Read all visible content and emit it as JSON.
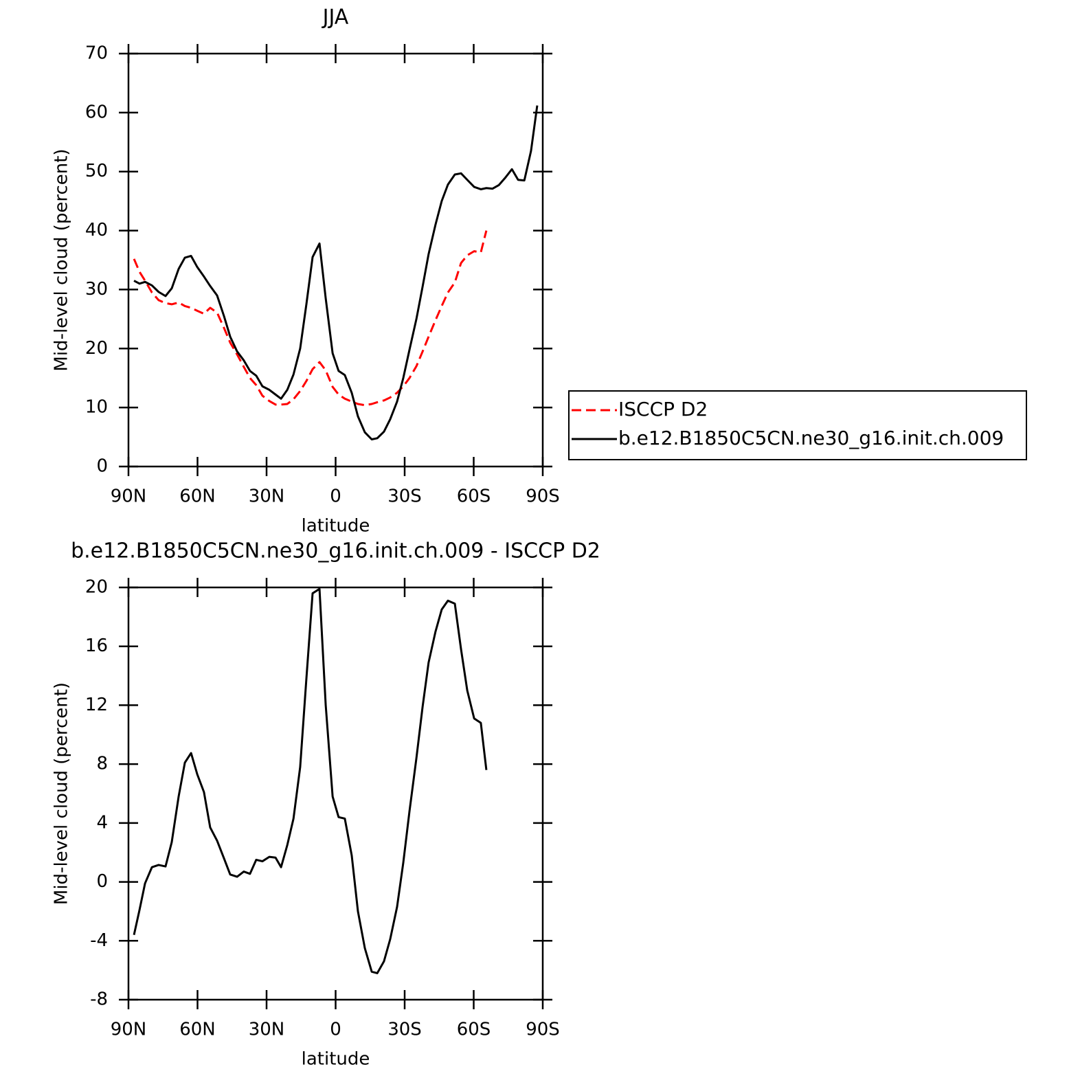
{
  "chart_data": [
    {
      "type": "line",
      "title": "JJA",
      "x_label": "latitude",
      "y_label": "Mid-level cloud (percent)",
      "x": [
        87.6,
        85.2,
        82.8,
        79.8,
        76.9,
        73.9,
        71.2,
        68.2,
        65.5,
        62.8,
        60.1,
        57.2,
        54.5,
        51.5,
        48.5,
        45.8,
        42.8,
        39.9,
        37.2,
        34.5,
        31.8,
        28.8,
        26.1,
        23.7,
        21,
        18.3,
        15.4,
        12.7,
        10,
        7,
        4.3,
        1.3,
        -1.3,
        -4,
        -7,
        -9.7,
        -12.7,
        -15.7,
        -18.1,
        -21,
        -23.7,
        -26.7,
        -29.4,
        -32.1,
        -35.1,
        -37.8,
        -40.4,
        -43.4,
        -46.1,
        -48.8,
        -51.8,
        -54.5,
        -57.2,
        -60.2,
        -63.1,
        -65.5,
        -68.2,
        -70.9,
        -73.6,
        -76.6,
        -79.3,
        -82,
        -84.9,
        -87.6
      ],
      "series": [
        {
          "name": "ISCCP D2",
          "color": "#ff0000",
          "style": "dashed",
          "values": [
            35.2,
            33,
            31.5,
            29.5,
            28.2,
            27.7,
            27.5,
            27.8,
            27.2,
            26.9,
            26.4,
            25.9,
            26.9,
            26.1,
            23.5,
            21,
            19,
            16.9,
            15,
            13.8,
            12,
            11.1,
            10.5,
            10.5,
            10.6,
            11.4,
            12.8,
            14.5,
            16.5,
            17.7,
            16.3,
            13.5,
            12.2,
            11.5,
            11,
            10.6,
            10.4,
            10.6,
            10.9,
            11.2,
            11.7,
            12.5,
            13.6,
            15,
            17,
            19.5,
            22,
            24.8,
            27.2,
            29.5,
            31.2,
            34.5,
            35.8,
            36.5,
            36.3,
            40,
            null,
            null,
            null,
            null,
            null,
            null,
            null,
            null
          ]
        },
        {
          "name": "b.e12.B1850C5CN.ne30_g16.init.ch.009",
          "color": "#000000",
          "style": "solid",
          "values": [
            31.5,
            31,
            31.3,
            30.7,
            29.6,
            28.9,
            30.2,
            33.5,
            35.4,
            35.7,
            33.8,
            32.2,
            30.6,
            29,
            25.5,
            22,
            19.5,
            18,
            16.2,
            15.4,
            13.6,
            13,
            12.2,
            11.5,
            13,
            15.6,
            20,
            27.5,
            35.5,
            37.8,
            28.5,
            19.2,
            16.2,
            15.5,
            12.5,
            8.5,
            5.8,
            4.6,
            4.8,
            5.9,
            8,
            11,
            15,
            19.8,
            25,
            30.5,
            36,
            41,
            45,
            47.8,
            49.5,
            49.7,
            48.6,
            47.4,
            47,
            47.2,
            47.1,
            47.7,
            48.9,
            50.4,
            48.6,
            48.5,
            53.5,
            61.2
          ]
        }
      ],
      "xlim": [
        90,
        -90
      ],
      "xticks": [
        {
          "value": 90,
          "label": "90N"
        },
        {
          "value": 60,
          "label": "60N"
        },
        {
          "value": 30,
          "label": "30N"
        },
        0,
        {
          "value": -30,
          "label": "30S"
        },
        {
          "value": -60,
          "label": "60S"
        },
        {
          "value": -90,
          "label": "90S"
        }
      ],
      "ylim": [
        0,
        70
      ],
      "yticks": [
        0,
        10,
        20,
        30,
        40,
        50,
        60,
        70
      ],
      "grid": false,
      "legend": "right"
    },
    {
      "type": "line",
      "title": "b.e12.B1850C5CN.ne30_g16.init.ch.009 - ISCCP D2",
      "x_label": "latitude",
      "y_label": "Mid-level cloud (percent)",
      "x": [
        87.6,
        85.2,
        82.8,
        79.8,
        76.9,
        73.9,
        71.2,
        68.2,
        65.5,
        62.8,
        60.1,
        57.2,
        54.5,
        51.5,
        48.5,
        45.8,
        42.8,
        39.9,
        37.2,
        34.5,
        31.8,
        28.8,
        26.1,
        23.7,
        21,
        18.3,
        15.4,
        12.7,
        10,
        7,
        4.3,
        1.3,
        -1.3,
        -4,
        -7,
        -9.7,
        -12.7,
        -15.7,
        -18.1,
        -21,
        -23.7,
        -26.7,
        -29.4,
        -32.1,
        -35.1,
        -37.8,
        -40.4,
        -43.4,
        -46.1,
        -48.8,
        -51.8,
        -54.5,
        -57.2,
        -60.2,
        -63.1,
        -65.5
      ],
      "values": [
        -3.6,
        -1.9,
        -0.1,
        1.0,
        1.15,
        1.05,
        2.7,
        5.8,
        8.1,
        8.75,
        7.3,
        6.1,
        3.7,
        2.8,
        1.6,
        0.5,
        0.35,
        0.7,
        0.55,
        1.5,
        1.4,
        1.7,
        1.65,
        1.0,
        2.5,
        4.3,
        7.8,
        13.8,
        19.6,
        19.9,
        12,
        5.8,
        4.4,
        4.3,
        1.8,
        -2,
        -4.5,
        -6.1,
        -6.2,
        -5.4,
        -3.9,
        -1.7,
        1.3,
        4.8,
        8.4,
        11.9,
        14.9,
        17,
        18.5,
        19.1,
        18.9,
        15.8,
        13,
        11.1,
        10.8,
        7.6
      ],
      "color": "#000000",
      "xlim": [
        90,
        -90
      ],
      "xticks": [
        {
          "value": 90,
          "label": "90N"
        },
        {
          "value": 60,
          "label": "60N"
        },
        {
          "value": 30,
          "label": "30N"
        },
        0,
        {
          "value": -30,
          "label": "30S"
        },
        {
          "value": -60,
          "label": "60S"
        },
        {
          "value": -90,
          "label": "90S"
        }
      ],
      "ylim": [
        -8,
        20
      ],
      "yticks": [
        -8,
        -4,
        0,
        4,
        8,
        12,
        16,
        20
      ],
      "grid": false
    }
  ]
}
